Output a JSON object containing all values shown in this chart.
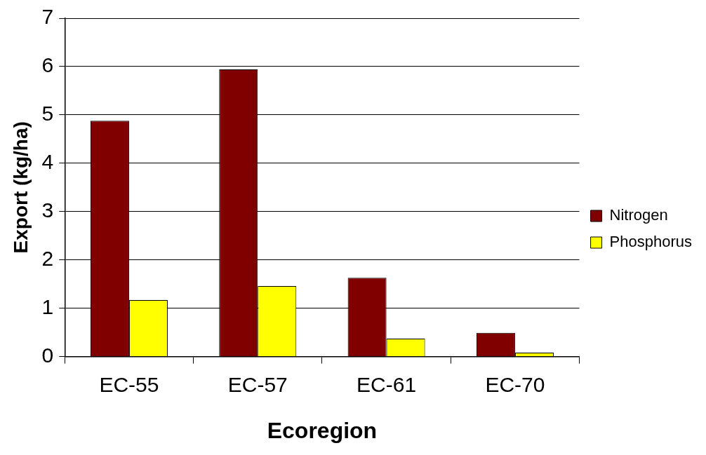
{
  "chart_data": {
    "type": "bar",
    "xlabel": "Ecoregion",
    "ylabel": "Export (kg/ha)",
    "categories": [
      "EC-55",
      "EC-57",
      "EC-61",
      "EC-70"
    ],
    "series": [
      {
        "name": "Nitrogen",
        "color": "#800000",
        "values": [
          4.88,
          5.94,
          1.63,
          0.49
        ]
      },
      {
        "name": "Phosphorus",
        "color": "#ffff00",
        "values": [
          1.17,
          1.46,
          0.37,
          0.08
        ]
      }
    ],
    "ylim": [
      0,
      7
    ],
    "yticks": [
      0,
      1,
      2,
      3,
      4,
      5,
      6,
      7
    ],
    "grid": "y",
    "legend": "right"
  }
}
